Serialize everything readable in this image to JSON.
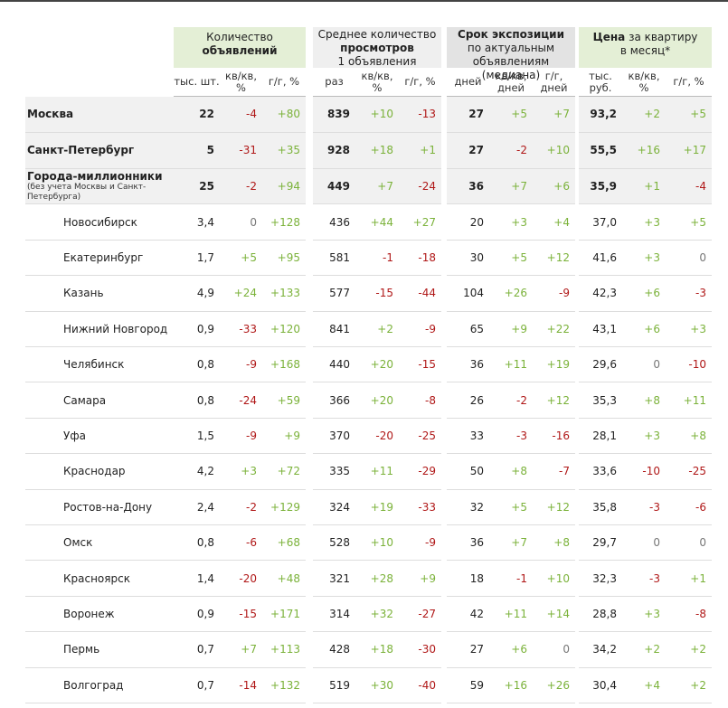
{
  "groups": [
    {
      "line1": "Количество",
      "line2": "объявлений"
    },
    {
      "line1": "Среднее количество",
      "line2": "просмотров",
      "line3": "1 объявления"
    },
    {
      "line1": "Срок экспозиции",
      "line2": "по актуальным",
      "line3": "объявлениям (медиана)"
    },
    {
      "line1": "Цена",
      "line1b": "за квартиру",
      "line2": "в месяц*"
    }
  ],
  "subheaders": [
    "тыс. шт.",
    "кв/кв, %",
    "г/г, %",
    "раз",
    "кв/кв, %",
    "г/г, %",
    "дней",
    "кв/кв, дней",
    "г/г, дней",
    "тыс. руб.",
    "кв/кв, %",
    "г/г, %"
  ],
  "rows": [
    {
      "name": "Москва",
      "values": [
        "22",
        "-4",
        "+80",
        "839",
        "+10",
        "-13",
        "27",
        "+5",
        "+7",
        "93,2",
        "+2",
        "+5"
      ]
    },
    {
      "name": "Санкт-Петербург",
      "values": [
        "5",
        "-31",
        "+35",
        "928",
        "+18",
        "+1",
        "27",
        "-2",
        "+10",
        "55,5",
        "+16",
        "+17"
      ]
    },
    {
      "name": "Города-миллионники",
      "note": "(без учета Москвы и Санкт-Петербурга)",
      "values": [
        "25",
        "-2",
        "+94",
        "449",
        "+7",
        "-24",
        "36",
        "+7",
        "+6",
        "35,9",
        "+1",
        "-4"
      ]
    },
    {
      "name": "Новосибирск",
      "values": [
        "3,4",
        "0",
        "+128",
        "436",
        "+44",
        "+27",
        "20",
        "+3",
        "+4",
        "37,0",
        "+3",
        "+5"
      ]
    },
    {
      "name": "Екатеринбург",
      "values": [
        "1,7",
        "+5",
        "+95",
        "581",
        "-1",
        "-18",
        "30",
        "+5",
        "+12",
        "41,6",
        "+3",
        "0"
      ]
    },
    {
      "name": "Казань",
      "values": [
        "4,9",
        "+24",
        "+133",
        "577",
        "-15",
        "-44",
        "104",
        "+26",
        "-9",
        "42,3",
        "+6",
        "-3"
      ]
    },
    {
      "name": "Нижний Новгород",
      "values": [
        "0,9",
        "-33",
        "+120",
        "841",
        "+2",
        "-9",
        "65",
        "+9",
        "+22",
        "43,1",
        "+6",
        "+3"
      ]
    },
    {
      "name": "Челябинск",
      "values": [
        "0,8",
        "-9",
        "+168",
        "440",
        "+20",
        "-15",
        "36",
        "+11",
        "+19",
        "29,6",
        "0",
        "-10"
      ]
    },
    {
      "name": "Самара",
      "values": [
        "0,8",
        "-24",
        "+59",
        "366",
        "+20",
        "-8",
        "26",
        "-2",
        "+12",
        "35,3",
        "+8",
        "+11"
      ]
    },
    {
      "name": "Уфа",
      "values": [
        "1,5",
        "-9",
        "+9",
        "370",
        "-20",
        "-25",
        "33",
        "-3",
        "-16",
        "28,1",
        "+3",
        "+8"
      ]
    },
    {
      "name": "Краснодар",
      "values": [
        "4,2",
        "+3",
        "+72",
        "335",
        "+11",
        "-29",
        "50",
        "+8",
        "-7",
        "33,6",
        "-10",
        "-25"
      ]
    },
    {
      "name": "Ростов-на-Дону",
      "values": [
        "2,4",
        "-2",
        "+129",
        "324",
        "+19",
        "-33",
        "32",
        "+5",
        "+12",
        "35,8",
        "-3",
        "-6"
      ]
    },
    {
      "name": "Омск",
      "values": [
        "0,8",
        "-6",
        "+68",
        "528",
        "+10",
        "-9",
        "36",
        "+7",
        "+8",
        "29,7",
        "0",
        "0"
      ]
    },
    {
      "name": "Красноярск",
      "values": [
        "1,4",
        "-20",
        "+48",
        "321",
        "+28",
        "+9",
        "18",
        "-1",
        "+10",
        "32,3",
        "-3",
        "+1"
      ]
    },
    {
      "name": "Воронеж",
      "values": [
        "0,9",
        "-15",
        "+171",
        "314",
        "+32",
        "-27",
        "42",
        "+11",
        "+14",
        "28,8",
        "+3",
        "-8"
      ]
    },
    {
      "name": "Пермь",
      "values": [
        "0,7",
        "+7",
        "+113",
        "428",
        "+18",
        "-30",
        "27",
        "+6",
        "0",
        "34,2",
        "+2",
        "+2"
      ]
    },
    {
      "name": "Волгоград",
      "values": [
        "0,7",
        "-14",
        "+132",
        "519",
        "+30",
        "-40",
        "59",
        "+16",
        "+26",
        "30,4",
        "+4",
        "+2"
      ]
    }
  ]
}
